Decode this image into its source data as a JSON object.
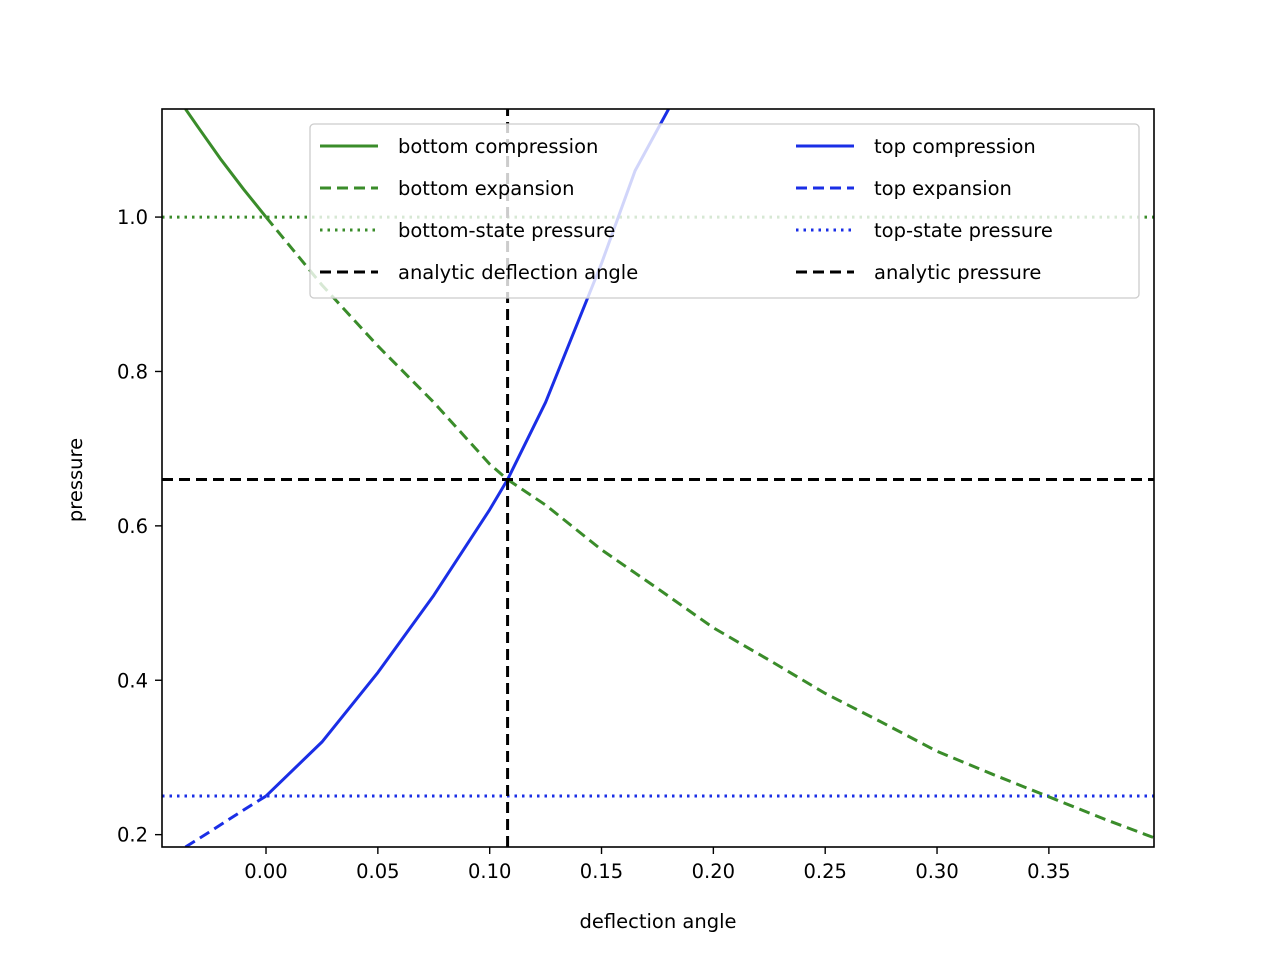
{
  "colors": {
    "bottom": "#3a8c2a",
    "top": "#1a2ee6",
    "analytic": "#000000",
    "axes": "#000000",
    "background": "#ffffff"
  },
  "chart_data": {
    "type": "line",
    "title": "",
    "xlabel": "deflection angle",
    "ylabel": "pressure",
    "xlim": [
      -0.0465,
      0.397
    ],
    "ylim": [
      0.184,
      1.14
    ],
    "xticks": [
      0.0,
      0.05,
      0.1,
      0.15,
      0.2,
      0.25,
      0.3,
      0.35
    ],
    "xtick_labels": [
      "0.00",
      "0.05",
      "0.10",
      "0.15",
      "0.20",
      "0.25",
      "0.30",
      "0.35"
    ],
    "yticks": [
      0.2,
      0.4,
      0.6,
      0.8,
      1.0
    ],
    "ytick_labels": [
      "0.2",
      "0.4",
      "0.6",
      "0.8",
      "1.0"
    ],
    "grid": false,
    "legend_position": "top-right",
    "legend_columns": 2,
    "series": [
      {
        "name": "bottom compression",
        "style": "solid",
        "color_key": "bottom",
        "x": [
          -0.036,
          -0.03,
          -0.02,
          -0.01,
          0.0
        ],
        "y": [
          1.14,
          1.115,
          1.074,
          1.036,
          1.0
        ]
      },
      {
        "name": "bottom expansion",
        "style": "dashed",
        "color_key": "bottom",
        "x": [
          0.0,
          0.025,
          0.05,
          0.075,
          0.1,
          0.108,
          0.125,
          0.15,
          0.175,
          0.2,
          0.225,
          0.25,
          0.275,
          0.3,
          0.325,
          0.35,
          0.375,
          0.397
        ],
        "y": [
          1.0,
          0.912,
          0.833,
          0.76,
          0.68,
          0.66,
          0.627,
          0.569,
          0.519,
          0.468,
          0.426,
          0.383,
          0.346,
          0.308,
          0.278,
          0.249,
          0.22,
          0.196
        ]
      },
      {
        "name": "bottom-state pressure",
        "style": "dotted",
        "color_key": "bottom",
        "x": [
          -0.0465,
          0.397
        ],
        "y": [
          1.0,
          1.0
        ]
      },
      {
        "name": "analytic deflection angle",
        "style": "dashed",
        "color_key": "analytic",
        "x": [
          0.108,
          0.108
        ],
        "y": [
          0.184,
          1.14
        ]
      },
      {
        "name": "top compression",
        "style": "solid",
        "color_key": "top",
        "x": [
          0.0,
          0.025,
          0.05,
          0.075,
          0.1,
          0.108,
          0.125,
          0.15,
          0.165,
          0.18
        ],
        "y": [
          0.25,
          0.32,
          0.41,
          0.51,
          0.621,
          0.66,
          0.76,
          0.94,
          1.06,
          1.14
        ]
      },
      {
        "name": "top expansion",
        "style": "dashed",
        "color_key": "top",
        "x": [
          -0.036,
          -0.025,
          -0.01,
          0.0
        ],
        "y": [
          0.184,
          0.204,
          0.232,
          0.25
        ]
      },
      {
        "name": "top-state pressure",
        "style": "dotted",
        "color_key": "top",
        "x": [
          -0.0465,
          0.397
        ],
        "y": [
          0.25,
          0.25
        ]
      },
      {
        "name": "analytic pressure",
        "style": "dashed",
        "color_key": "analytic",
        "x": [
          -0.0465,
          0.397
        ],
        "y": [
          0.66,
          0.66
        ]
      }
    ]
  }
}
